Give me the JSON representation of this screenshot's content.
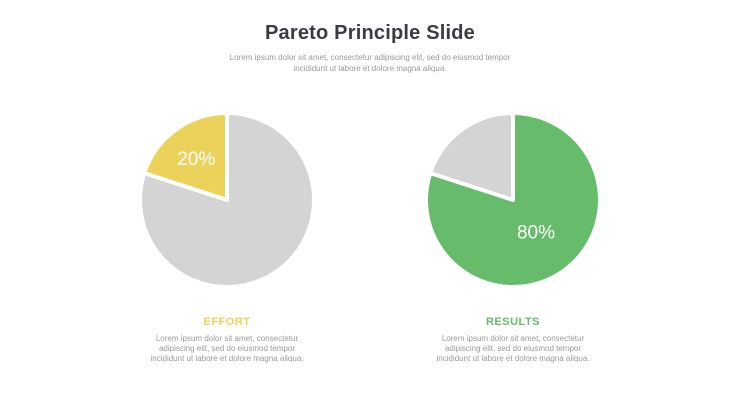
{
  "title": "Pareto Principle Slide",
  "subtitle": "Lorem ipsum dolor sit amet, consectetur adipiscing elit, sed do eiusmod tempor incididunt ut labore et dolore magna aliqua.",
  "colors": {
    "effort": "#ecd25b",
    "results": "#67bc6b",
    "remainder": "#d4d4d4",
    "divider": "#ffffff",
    "label": "#ffffff"
  },
  "chart_data": [
    {
      "type": "pie",
      "title": "",
      "categories": [
        "20%",
        ""
      ],
      "values": [
        20,
        80
      ],
      "highlight_index": 0,
      "label_text": "20%"
    },
    {
      "type": "pie",
      "title": "",
      "categories": [
        "",
        "80%"
      ],
      "values": [
        20,
        80
      ],
      "highlight_index": 1,
      "label_text": "80%"
    }
  ],
  "captions": [
    {
      "title": "EFFORT",
      "body": "Lorem ipsum dolor sit amet, consectetur adipiscing elit, sed do eiusmod tempor incididunt ut labore et dolore magna aliqua."
    },
    {
      "title": "RESULTS",
      "body": "Lorem ipsum dolor sit amet, consectetur adipiscing elit, sed do eiusmod tempor incididunt ut labore et dolore magna aliqua."
    }
  ]
}
